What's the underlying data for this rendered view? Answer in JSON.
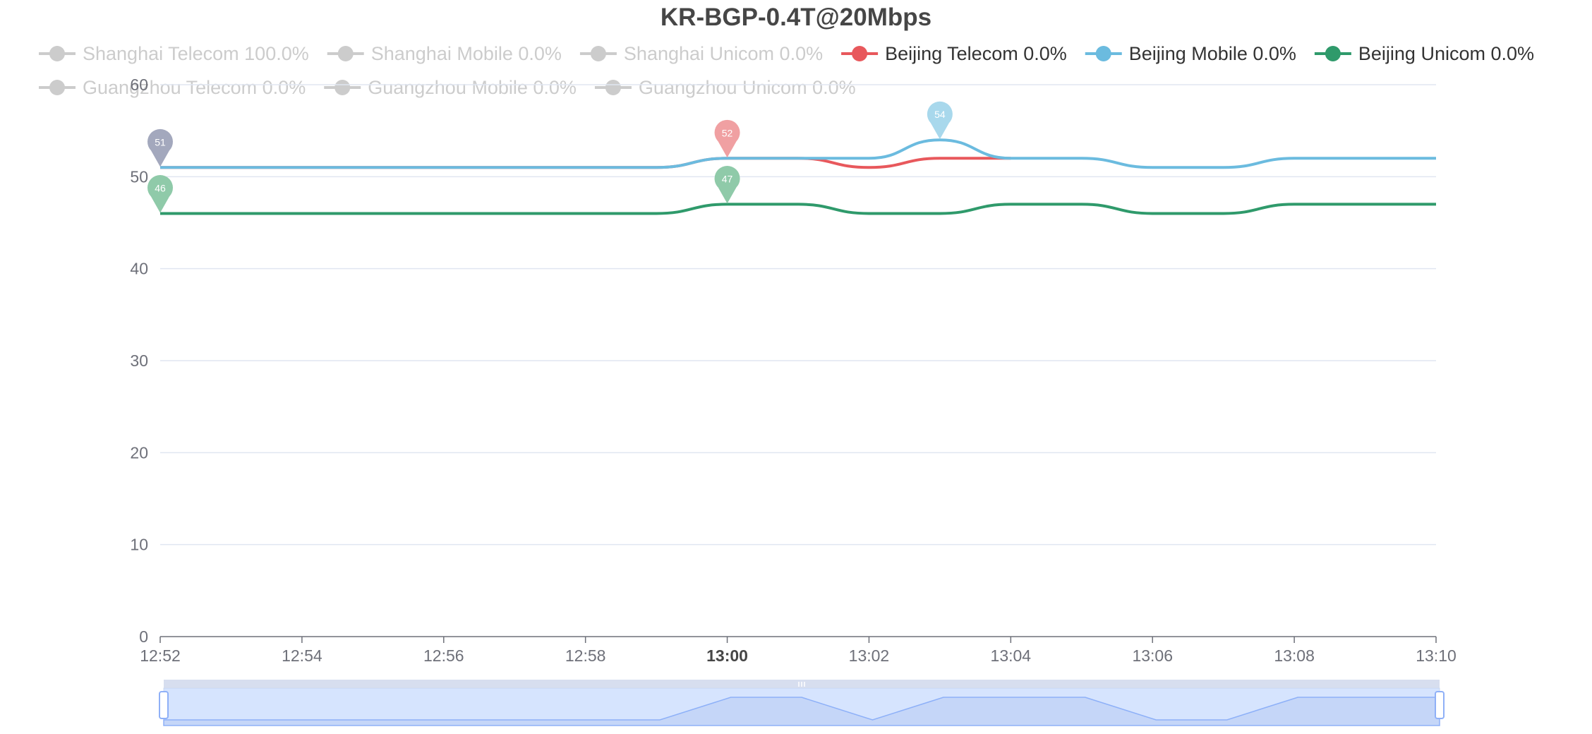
{
  "chart_data": {
    "type": "line",
    "title": "KR-BGP-0.4T@20Mbps",
    "xlabel": "",
    "ylabel": "",
    "x_ticks": [
      "12:52",
      "12:54",
      "12:56",
      "12:58",
      "13:00",
      "13:02",
      "13:04",
      "13:06",
      "13:08",
      "13:10"
    ],
    "x_ticks_bold": [
      "13:00"
    ],
    "y_ticks": [
      "0",
      "10",
      "20",
      "30",
      "40",
      "50",
      "60"
    ],
    "ylim": [
      0,
      60
    ],
    "xlim": [
      "12:52",
      "13:10"
    ],
    "grid": true,
    "legend_placement": "top",
    "legend": [
      {
        "label": "Shanghai Telecom 100.0%",
        "color": "#cccccc",
        "active": false
      },
      {
        "label": "Shanghai Mobile 0.0%",
        "color": "#cccccc",
        "active": false
      },
      {
        "label": "Shanghai Unicom 0.0%",
        "color": "#cccccc",
        "active": false
      },
      {
        "label": "Beijing Telecom 0.0%",
        "color": "#e8585c",
        "active": true
      },
      {
        "label": "Beijing Mobile 0.0%",
        "color": "#6bbbdf",
        "active": true
      },
      {
        "label": "Beijing Unicom 0.0%",
        "color": "#2f9a6b",
        "active": true
      },
      {
        "label": "Guangzhou Telecom 0.0%",
        "color": "#cccccc",
        "active": false
      },
      {
        "label": "Guangzhou Mobile 0.0%",
        "color": "#cccccc",
        "active": false
      },
      {
        "label": "Guangzhou Unicom 0.0%",
        "color": "#cccccc",
        "active": false
      }
    ],
    "x": [
      "12:52",
      "12:53",
      "12:54",
      "12:55",
      "12:56",
      "12:57",
      "12:58",
      "12:59",
      "13:00",
      "13:01",
      "13:02",
      "13:03",
      "13:04",
      "13:05",
      "13:06",
      "13:07",
      "13:08",
      "13:09",
      "13:10"
    ],
    "series": [
      {
        "name": "Beijing Telecom 0.0%",
        "color": "#e8585c",
        "values": [
          51,
          51,
          51,
          51,
          51,
          51,
          51,
          51,
          52,
          52,
          51,
          52,
          52,
          null,
          null,
          null,
          null,
          null,
          null
        ]
      },
      {
        "name": "Beijing Mobile 0.0%",
        "color": "#6bbbdf",
        "values": [
          51,
          51,
          51,
          51,
          51,
          51,
          51,
          51,
          52,
          52,
          52,
          54,
          52,
          52,
          51,
          51,
          52,
          52,
          52
        ]
      },
      {
        "name": "Beijing Unicom 0.0%",
        "color": "#2f9a6b",
        "values": [
          46,
          46,
          46,
          46,
          46,
          46,
          46,
          46,
          47,
          47,
          46,
          46,
          47,
          47,
          46,
          46,
          47,
          47,
          47
        ]
      }
    ],
    "markers": [
      {
        "label": "51",
        "x": "12:52",
        "y": 51,
        "color": "#a3a8bd"
      },
      {
        "label": "46",
        "x": "12:52",
        "y": 46,
        "color": "#8fcaa9"
      },
      {
        "label": "52",
        "x": "13:00",
        "y": 52,
        "color": "#f0a0a2"
      },
      {
        "label": "47",
        "x": "13:00",
        "y": 47,
        "color": "#8fcaa9"
      },
      {
        "label": "54",
        "x": "13:03",
        "y": 54,
        "color": "#a8d8ec"
      }
    ],
    "data_zoom": {
      "start": "12:52",
      "end": "13:10",
      "values": [
        0,
        0,
        0,
        0,
        0,
        0,
        0,
        0,
        1,
        1,
        0,
        1,
        1,
        1,
        0,
        0,
        1,
        1,
        1
      ]
    }
  }
}
